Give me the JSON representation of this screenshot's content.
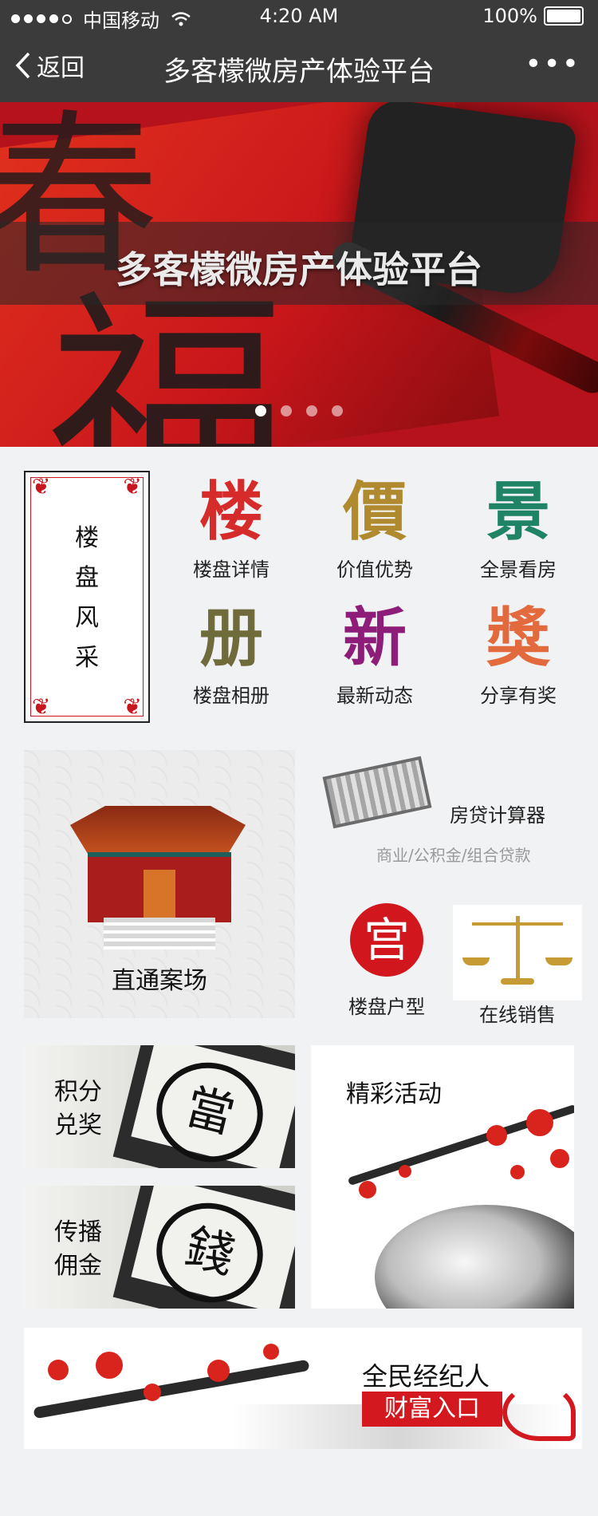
{
  "status": {
    "carrier": "中国移动",
    "time": "4:20 AM",
    "battery": "100%"
  },
  "nav": {
    "back": "返回",
    "title": "多客檬微房产体验平台",
    "more": "•••"
  },
  "banner": {
    "caption": "多客檬微房产体验平台",
    "slide_count": 4,
    "active_slide": 1,
    "big_char": "福",
    "top_char": "春"
  },
  "intro": {
    "label": "楼盘风采",
    "lines": [
      "楼",
      "盘",
      "风",
      "采"
    ]
  },
  "features": [
    {
      "seal": "楼",
      "label": "楼盘详情",
      "color": "#d62b2b"
    },
    {
      "seal": "價",
      "label": "价值优势",
      "color": "#b08a2e"
    },
    {
      "seal": "景",
      "label": "全景看房",
      "color": "#1f8466"
    },
    {
      "seal": "册",
      "label": "楼盘相册",
      "color": "#6f6b3b"
    },
    {
      "seal": "新",
      "label": "最新动态",
      "color": "#8d1d78"
    },
    {
      "seal": "獎",
      "label": "分享有奖",
      "color": "#e26a3d"
    }
  ],
  "site": {
    "label": "直通案场"
  },
  "calculator": {
    "title": "房贷计算器",
    "subtitle": "商业/公积金/组合贷款"
  },
  "floorplan": {
    "seal": "宫",
    "label": "楼盘户型"
  },
  "sales": {
    "label": "在线销售"
  },
  "points": {
    "label_line1": "积分",
    "label_line2": "兑奖",
    "seal": "當"
  },
  "commission": {
    "label_line1": "传播",
    "label_line2": "佣金",
    "seal": "錢"
  },
  "events": {
    "label": "精彩活动"
  },
  "referral": {
    "title": "全民经纪人",
    "button": "财富入口"
  }
}
